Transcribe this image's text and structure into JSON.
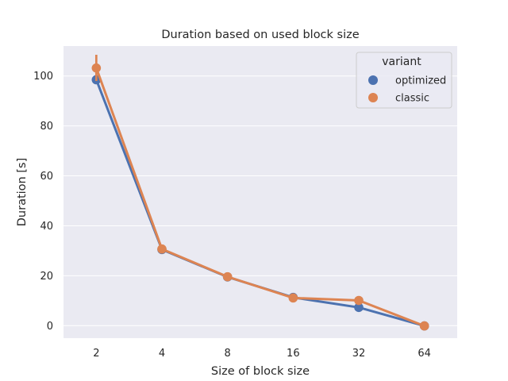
{
  "chart_data": {
    "type": "line",
    "title": "Duration based on used block size",
    "xlabel": "Size of block size",
    "ylabel": "Duration [s]",
    "categories": [
      "2",
      "4",
      "8",
      "16",
      "32",
      "64"
    ],
    "ylim": [
      -5,
      112
    ],
    "yticks": [
      0,
      20,
      40,
      60,
      80,
      100
    ],
    "grid": true,
    "legend_title": "variant",
    "legend_position": "top-right",
    "series": [
      {
        "name": "optimized",
        "color": "#4c72b0",
        "values": [
          98.5,
          30.5,
          19.5,
          11.3,
          7.3,
          -0.1
        ],
        "err_low": [
          97.5,
          30.1,
          19.2,
          11.1,
          7.1,
          -0.2
        ],
        "err_high": [
          100.0,
          30.9,
          19.8,
          11.5,
          7.5,
          0.0
        ]
      },
      {
        "name": "classic",
        "color": "#dd8452",
        "values": [
          103.2,
          30.7,
          19.6,
          11.1,
          10.1,
          -0.1
        ],
        "err_low": [
          98.0,
          30.3,
          19.3,
          10.9,
          9.9,
          -0.2
        ],
        "err_high": [
          108.5,
          31.1,
          19.9,
          11.3,
          10.3,
          0.0
        ]
      }
    ]
  }
}
